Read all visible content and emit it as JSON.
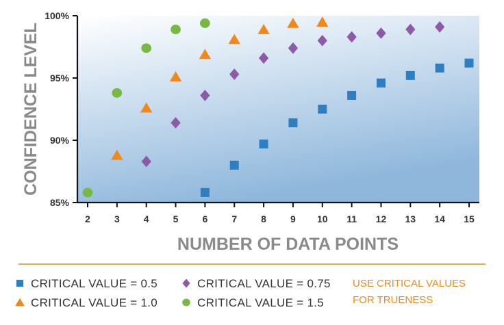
{
  "chart_data": {
    "type": "scatter",
    "xlabel": "NUMBER OF DATA POINTS",
    "ylabel": "CONFIDENCE LEVEL",
    "xlim": [
      1.65,
      15.35
    ],
    "ylim": [
      85,
      100
    ],
    "x_ticks": [
      "2",
      "3",
      "4",
      "5",
      "6",
      "7",
      "8",
      "9",
      "10",
      "11",
      "12",
      "13",
      "14",
      "15"
    ],
    "y_ticks": [
      {
        "value": 100,
        "label": "100%"
      },
      {
        "value": 95,
        "label": "95%"
      },
      {
        "value": 90,
        "label": "90%"
      },
      {
        "value": 85,
        "label": "85%"
      }
    ],
    "grid": false,
    "background": "gradient-light-to-blue",
    "series": [
      {
        "name": "CRITICAL VALUE = 0.5",
        "marker": "square",
        "color": "#2e7fc2",
        "x": [
          6,
          7,
          8,
          9,
          10,
          11,
          12,
          13,
          14,
          15
        ],
        "y": [
          85.8,
          88.0,
          89.7,
          91.4,
          92.5,
          93.6,
          94.6,
          95.2,
          95.8,
          96.2
        ]
      },
      {
        "name": "CRITICAL VALUE = 0.75",
        "marker": "diamond",
        "color": "#8c5aa6",
        "x": [
          4,
          5,
          6,
          7,
          8,
          9,
          10,
          11,
          12,
          13,
          14
        ],
        "y": [
          88.3,
          91.4,
          93.6,
          95.3,
          96.6,
          97.4,
          98.0,
          98.3,
          98.6,
          98.9,
          99.1
        ]
      },
      {
        "name": "CRITICAL VALUE = 1.0",
        "marker": "triangle",
        "color": "#f0891c",
        "x": [
          3,
          4,
          5,
          6,
          7,
          8,
          9,
          10
        ],
        "y": [
          88.8,
          92.6,
          95.1,
          96.9,
          98.1,
          98.9,
          99.4,
          99.5
        ]
      },
      {
        "name": "CRITICAL VALUE = 1.5",
        "marker": "circle",
        "color": "#78b943",
        "x": [
          2,
          3,
          4,
          5,
          6
        ],
        "y": [
          85.8,
          93.8,
          97.4,
          98.9,
          99.4
        ]
      }
    ],
    "legend": {
      "placement": "bottom",
      "order": [
        "CRITICAL VALUE = 0.5",
        "CRITICAL VALUE = 0.75",
        "CRITICAL VALUE = 1.0",
        "CRITICAL VALUE = 1.5"
      ]
    },
    "annotation": {
      "lines": [
        "USE CRITICAL VALUES",
        "FOR TRUENESS"
      ],
      "color": "#f0891c"
    },
    "divider_color": "#f0891c"
  }
}
